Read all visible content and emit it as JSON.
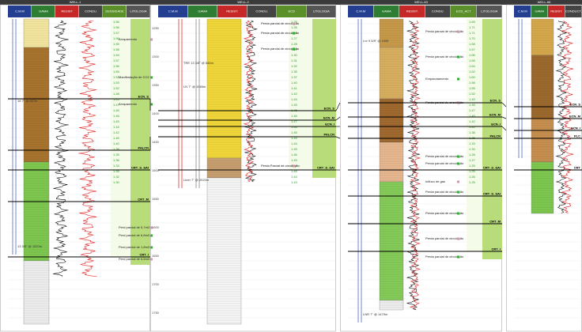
{
  "wells": [
    {
      "name": "WELL-1",
      "header": [
        {
          "text": "C.M.M",
          "color": "#243f8f"
        },
        {
          "text": "GAMA",
          "color": "#2e7d32"
        },
        {
          "text": "RESIST.",
          "color": "#c62828"
        },
        {
          "text": "CONDU.",
          "color": "#444"
        },
        {
          "text": "DENSIDADE",
          "color": "#5a8f29"
        },
        {
          "text": "LITOLOGIA",
          "color": "#555"
        }
      ],
      "tops": [
        {
          "name": "ECN_S"
        },
        {
          "name": "PALCN"
        },
        {
          "name": "CRT_S_SAI"
        },
        {
          "name": "CRT_M"
        },
        {
          "name": "CRT_I"
        }
      ],
      "notes": [
        "Arrapamento",
        "Manifestação de CO2",
        "Arrapamento",
        "Perd parcial de 5,7m3",
        "Perd parcial de 6,8m3",
        "Perd parcial de 1,8m3",
        "Perd parcial de 6,8m3"
      ],
      "casing": [
        "18 7\" @ 607m",
        "13 3/8\" @ 1020m"
      ],
      "ecd": [
        "1.56",
        "1.56",
        "1.57",
        "1.56",
        "1.55",
        "1.58",
        "1.54",
        "1.57",
        "1.56",
        "1.55",
        "1.52",
        "1.53",
        "1.52",
        "1.48",
        "1.45",
        "1.47",
        "1.45",
        "1.46",
        "1.45",
        "1.44",
        "1.42",
        "1.45",
        "1.40",
        "1.38",
        "1.35",
        "1.36",
        "1.33",
        "1.35",
        "1.32",
        "1.30"
      ]
    },
    {
      "name": "WELL-2",
      "header": [
        {
          "text": "C.M.M",
          "color": "#243f8f"
        },
        {
          "text": "GAMA",
          "color": "#2e7d32"
        },
        {
          "text": "RESIST.",
          "color": "#c62828"
        },
        {
          "text": "CONDU.",
          "color": "#444"
        },
        {
          "text": "ECD",
          "color": "#5a8f29"
        },
        {
          "text": "LITOLOGIA",
          "color": "#555"
        }
      ],
      "tops": [
        {
          "name": "ECN_S"
        },
        {
          "name": "ECN_M"
        },
        {
          "name": "ECN_I"
        },
        {
          "name": "PALCN"
        },
        {
          "name": "CRT_S_SAI"
        }
      ],
      "notes": [
        "Perda parcial de circulação",
        "Perda parcial de circulação",
        "Perda parcial de circulação",
        "Perda Parcial de circulação"
      ],
      "casing": [
        "TRE 13 3/8\" @ 646m",
        "LN 7\" @ 1565m",
        "Liner 7\" @ 2020m"
      ],
      "depths": [
        "1250",
        "1300",
        "1350",
        "1400",
        "1450",
        "1500",
        "1550",
        "1600",
        "1650",
        "1700",
        "1750"
      ],
      "ecd": [
        "1.25",
        "1.26",
        "1.26",
        "1.27",
        "1.28",
        "1.29",
        "1.30",
        "1.31",
        "1.32",
        "1.35",
        "1.37",
        "1.40",
        "1.41",
        "1.42",
        "1.44",
        "1.45",
        "1.45",
        "1.46",
        "1.47",
        "1.46",
        "1.45",
        "1.44",
        "1.44",
        "1.45",
        "1.46",
        "1.45",
        "1.44",
        "1.45",
        "1.44",
        "1.43"
      ]
    },
    {
      "name": "WELL-63",
      "header": [
        {
          "text": "C.M.M",
          "color": "#243f8f"
        },
        {
          "text": "GAMA",
          "color": "#2e7d32"
        },
        {
          "text": "RESIST.",
          "color": "#c62828"
        },
        {
          "text": "CONDU.",
          "color": "#444"
        },
        {
          "text": "ECD_ACT",
          "color": "#5a8f29"
        },
        {
          "text": "LITOLOGIA",
          "color": "#555"
        }
      ],
      "tops": [
        {
          "name": "ECN_S"
        },
        {
          "name": "ECN_M"
        },
        {
          "name": "ECN_I"
        },
        {
          "name": "PALCN"
        },
        {
          "name": "CRT_S_SAI"
        },
        {
          "name": "CRT_S_SAI"
        },
        {
          "name": "CRT_M"
        },
        {
          "name": "CRT_I"
        }
      ],
      "notes": [
        "Perda parcial de circulação",
        "Perda parcial de circulação",
        "Empacotamento",
        "Perda parcial de circulação",
        "Perda parcial de circulação",
        "Perda parcial de circulação",
        "Influxo de gás",
        "Perda parcial de circulação",
        "Perda parcial de circulação",
        "Perda parcial de circulação",
        "Perda parcial de circulação"
      ],
      "casing": [
        "Lnr 9 5/8\" @ 1555",
        "LNR 7\" @ 1479m"
      ],
      "ecd": [
        "1.69",
        "1.71",
        "1.71",
        "1.70",
        "1.68",
        "1.67",
        "1.66",
        "1.65",
        "1.64",
        "1.62",
        "1.60",
        "1.58",
        "1.55",
        "1.52",
        "1.49",
        "1.48",
        "1.47",
        "1.45",
        "1.42",
        "1.40",
        "1.38",
        "1.35",
        "1.33",
        "1.30",
        "1.28",
        "1.27",
        "1.25",
        "1.25",
        "1.26",
        "1.25"
      ]
    },
    {
      "name": "WELL-66",
      "header": [
        {
          "text": "C.M.M",
          "color": "#243f8f"
        },
        {
          "text": "GAMA",
          "color": "#2e7d32"
        },
        {
          "text": "RESIST.",
          "color": "#c62828"
        },
        {
          "text": "CONDUCT.",
          "color": "#444"
        }
      ],
      "tops": [
        {
          "name": "ECN_S"
        },
        {
          "name": "ECN_M"
        },
        {
          "name": "ECN_I"
        },
        {
          "name": "PLC"
        },
        {
          "name": "CRT"
        }
      ],
      "notes": [],
      "casing": [],
      "ecd": []
    }
  ]
}
